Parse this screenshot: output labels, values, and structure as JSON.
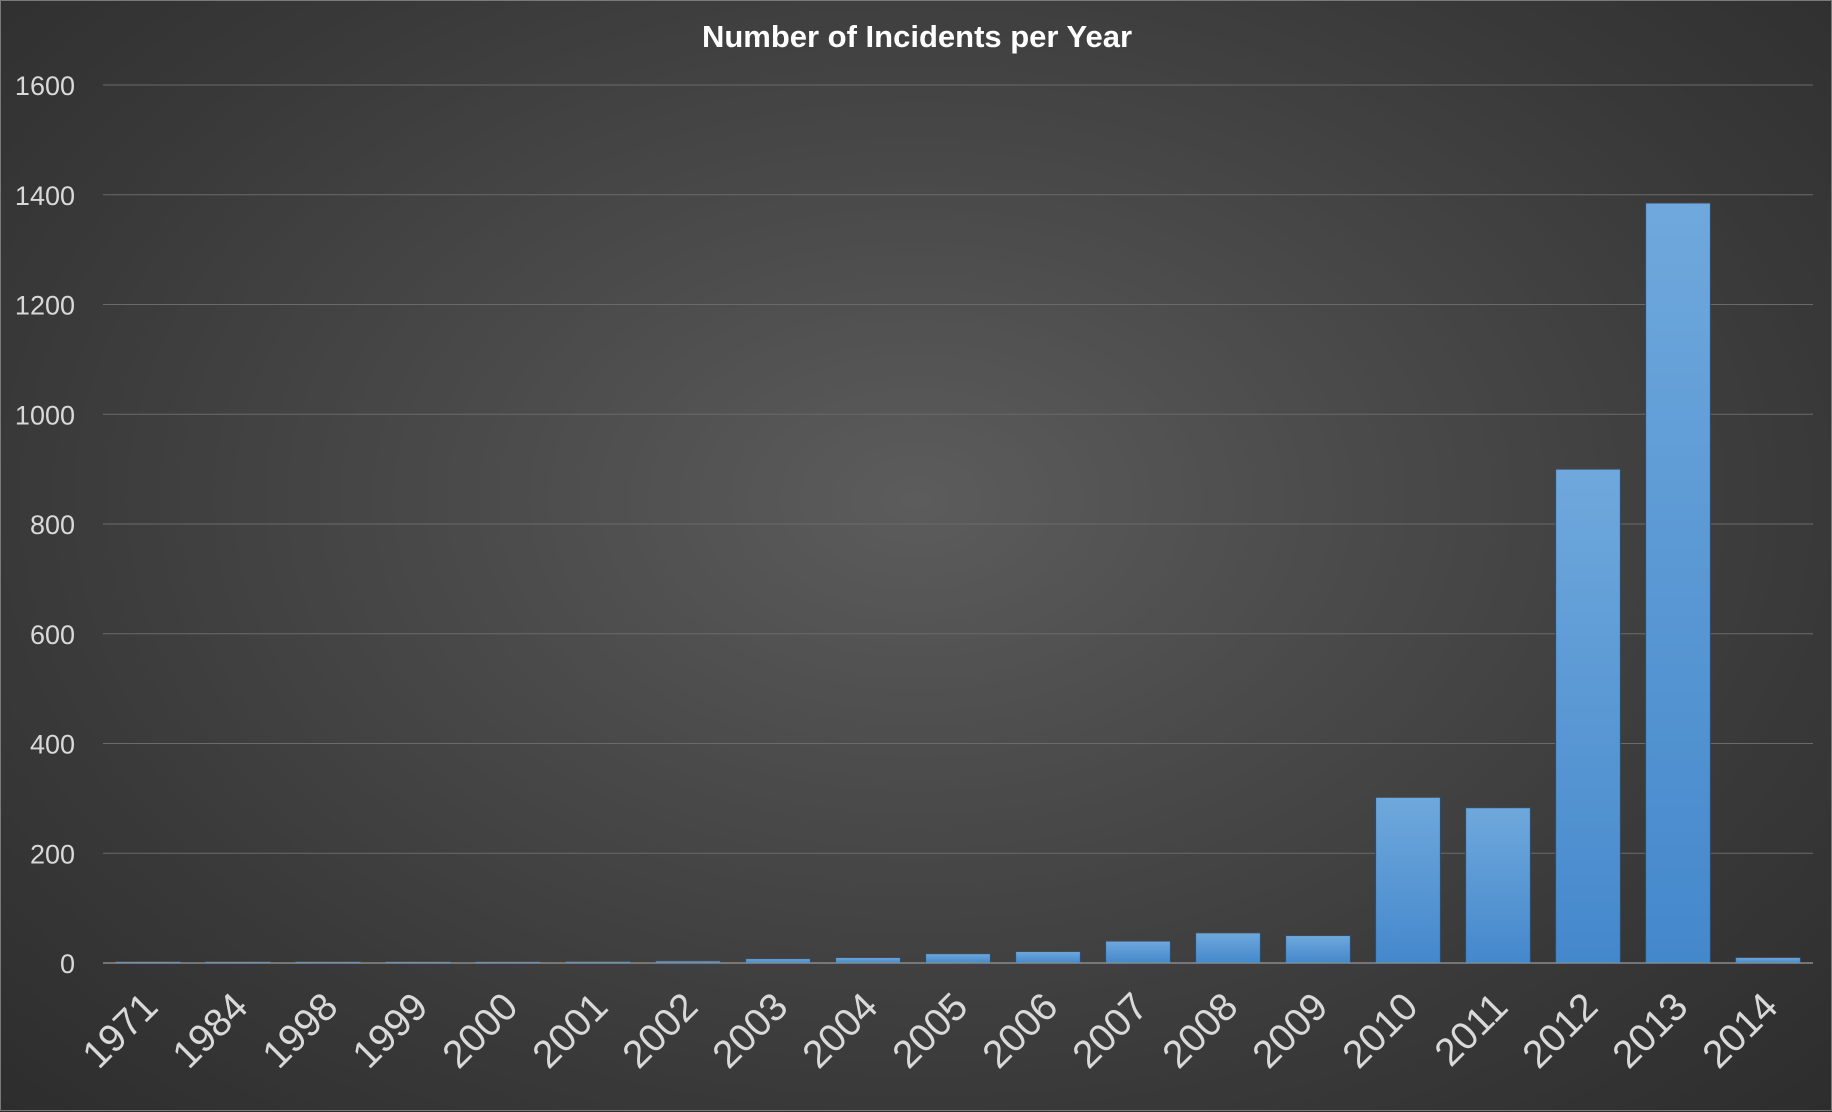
{
  "chart_data": {
    "type": "bar",
    "title": "Number of Incidents per Year",
    "xlabel": "",
    "ylabel": "",
    "categories": [
      "1971",
      "1984",
      "1998",
      "1999",
      "2000",
      "2001",
      "2002",
      "2003",
      "2004",
      "2005",
      "2006",
      "2007",
      "2008",
      "2009",
      "2010",
      "2011",
      "2012",
      "2013",
      "2014"
    ],
    "values": [
      1,
      1,
      1,
      1,
      2,
      3,
      4,
      8,
      10,
      17,
      21,
      40,
      55,
      50,
      302,
      283,
      900,
      1385,
      10
    ],
    "ylim": [
      0,
      1600
    ],
    "yticks": [
      0,
      200,
      400,
      600,
      800,
      1000,
      1200,
      1400,
      1600
    ],
    "grid": true,
    "legend": "none",
    "colors": {
      "bar_top": "#6fa8dc",
      "bar_bottom": "#4488cc",
      "bar_edge": "#2a4e72",
      "background": "#4a4a4a"
    }
  }
}
